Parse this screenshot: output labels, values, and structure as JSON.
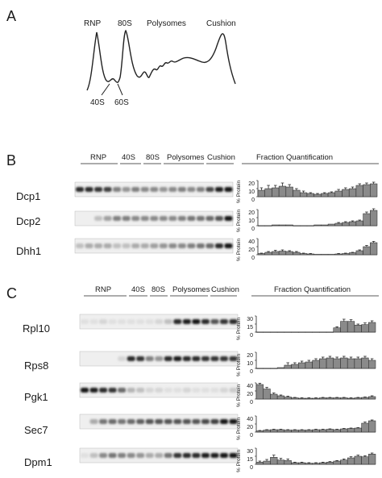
{
  "panels": {
    "A": {
      "letter": "A",
      "peaks": [
        "RNP",
        "80S",
        "Polysomes",
        "Cushion"
      ],
      "subpeaks": [
        "40S",
        "60S"
      ]
    },
    "B": {
      "letter": "B",
      "fraction_headers": [
        "RNP",
        "40S",
        "80S",
        "Polysomes",
        "Cushion"
      ],
      "quant_title": "Fraction Quantification",
      "y_axis_label": "% Protein",
      "rows": [
        {
          "protein": "Dcp1",
          "ticks": [
            "20",
            "10",
            "0"
          ]
        },
        {
          "protein": "Dcp2",
          "ticks": [
            "20",
            "10",
            "0"
          ]
        },
        {
          "protein": "Dhh1",
          "ticks": [
            "40",
            "20",
            "0"
          ]
        }
      ]
    },
    "C": {
      "letter": "C",
      "fraction_headers": [
        "RNP",
        "40S",
        "80S",
        "Polysomes",
        "Cushion"
      ],
      "quant_title": "Fraction Quantification",
      "y_axis_label": "% Protein",
      "rows": [
        {
          "protein": "Rpl10",
          "ticks": [
            "30",
            "15",
            "0"
          ]
        },
        {
          "protein": "Rps8",
          "ticks": [
            "20",
            "10",
            "0"
          ]
        },
        {
          "protein": "Pgk1",
          "ticks": [
            "40",
            "20",
            "0"
          ]
        },
        {
          "protein": "Sec7",
          "ticks": [
            "40",
            "20",
            "0"
          ]
        },
        {
          "protein": "Dpm1",
          "ticks": [
            "30",
            "15",
            "0"
          ]
        }
      ]
    }
  },
  "chart_data": [
    {
      "type": "bar",
      "panel": "B",
      "name": "Dcp1",
      "ylim": [
        0,
        20
      ],
      "values": [
        8,
        10,
        11,
        13,
        12,
        8,
        5,
        4,
        3,
        4,
        5,
        7,
        9,
        10,
        14,
        15,
        16
      ],
      "errors": [
        3,
        4,
        3,
        4,
        3,
        2,
        2,
        1,
        1,
        1,
        1,
        2,
        2,
        2,
        2,
        2,
        2
      ]
    },
    {
      "type": "bar",
      "panel": "B",
      "name": "Dcp2",
      "ylim": [
        0,
        20
      ],
      "values": [
        0,
        0,
        1,
        1,
        1,
        0,
        0,
        0,
        1,
        1,
        2,
        3,
        4,
        5,
        6,
        15,
        19
      ],
      "errors": [
        0,
        0,
        0,
        0,
        0,
        0,
        0,
        0,
        0,
        0,
        0,
        1,
        1,
        1,
        1,
        2,
        2
      ]
    },
    {
      "type": "bar",
      "panel": "B",
      "name": "Dhh1",
      "ylim": [
        0,
        40
      ],
      "values": [
        3,
        6,
        8,
        9,
        8,
        6,
        3,
        2,
        1,
        1,
        1,
        2,
        3,
        5,
        10,
        20,
        30
      ],
      "errors": [
        1,
        2,
        3,
        3,
        2,
        2,
        1,
        1,
        0,
        0,
        0,
        1,
        1,
        1,
        2,
        3,
        3
      ]
    },
    {
      "type": "bar",
      "panel": "C",
      "name": "Rpl10",
      "ylim": [
        0,
        30
      ],
      "values": [
        0,
        0,
        0,
        0,
        0,
        0,
        0,
        0,
        0,
        0,
        0,
        8,
        20,
        20,
        13,
        14,
        18
      ],
      "errors": [
        0,
        0,
        0,
        0,
        0,
        0,
        0,
        0,
        0,
        0,
        0,
        2,
        4,
        3,
        2,
        3,
        3
      ]
    },
    {
      "type": "bar",
      "panel": "C",
      "name": "Rps8",
      "ylim": [
        0,
        20
      ],
      "values": [
        0,
        0,
        0,
        1,
        4,
        5,
        7,
        8,
        10,
        12,
        13,
        12,
        13,
        12,
        12,
        13,
        10
      ],
      "errors": [
        0,
        0,
        0,
        0,
        3,
        2,
        2,
        2,
        2,
        2,
        2,
        2,
        2,
        2,
        2,
        2,
        2
      ]
    },
    {
      "type": "bar",
      "panel": "C",
      "name": "Pgk1",
      "ylim": [
        0,
        40
      ],
      "values": [
        36,
        25,
        12,
        8,
        5,
        3,
        2,
        2,
        2,
        3,
        3,
        3,
        3,
        2,
        3,
        4,
        6
      ],
      "errors": [
        3,
        4,
        3,
        2,
        2,
        1,
        1,
        1,
        1,
        1,
        1,
        1,
        1,
        1,
        1,
        1,
        2
      ]
    },
    {
      "type": "bar",
      "panel": "C",
      "name": "Sec7",
      "ylim": [
        0,
        40
      ],
      "values": [
        3,
        5,
        6,
        6,
        5,
        5,
        5,
        5,
        6,
        6,
        7,
        6,
        8,
        9,
        10,
        22,
        28
      ],
      "errors": [
        1,
        1,
        1,
        1,
        1,
        1,
        1,
        1,
        1,
        1,
        1,
        1,
        1,
        1,
        1,
        3,
        2
      ]
    },
    {
      "type": "bar",
      "panel": "C",
      "name": "Dpm1",
      "ylim": [
        0,
        30
      ],
      "values": [
        4,
        6,
        13,
        8,
        7,
        3,
        3,
        2,
        2,
        3,
        4,
        6,
        8,
        12,
        15,
        14,
        19
      ],
      "errors": [
        2,
        3,
        4,
        3,
        3,
        1,
        1,
        1,
        1,
        1,
        1,
        1,
        2,
        2,
        2,
        2,
        2
      ]
    }
  ]
}
